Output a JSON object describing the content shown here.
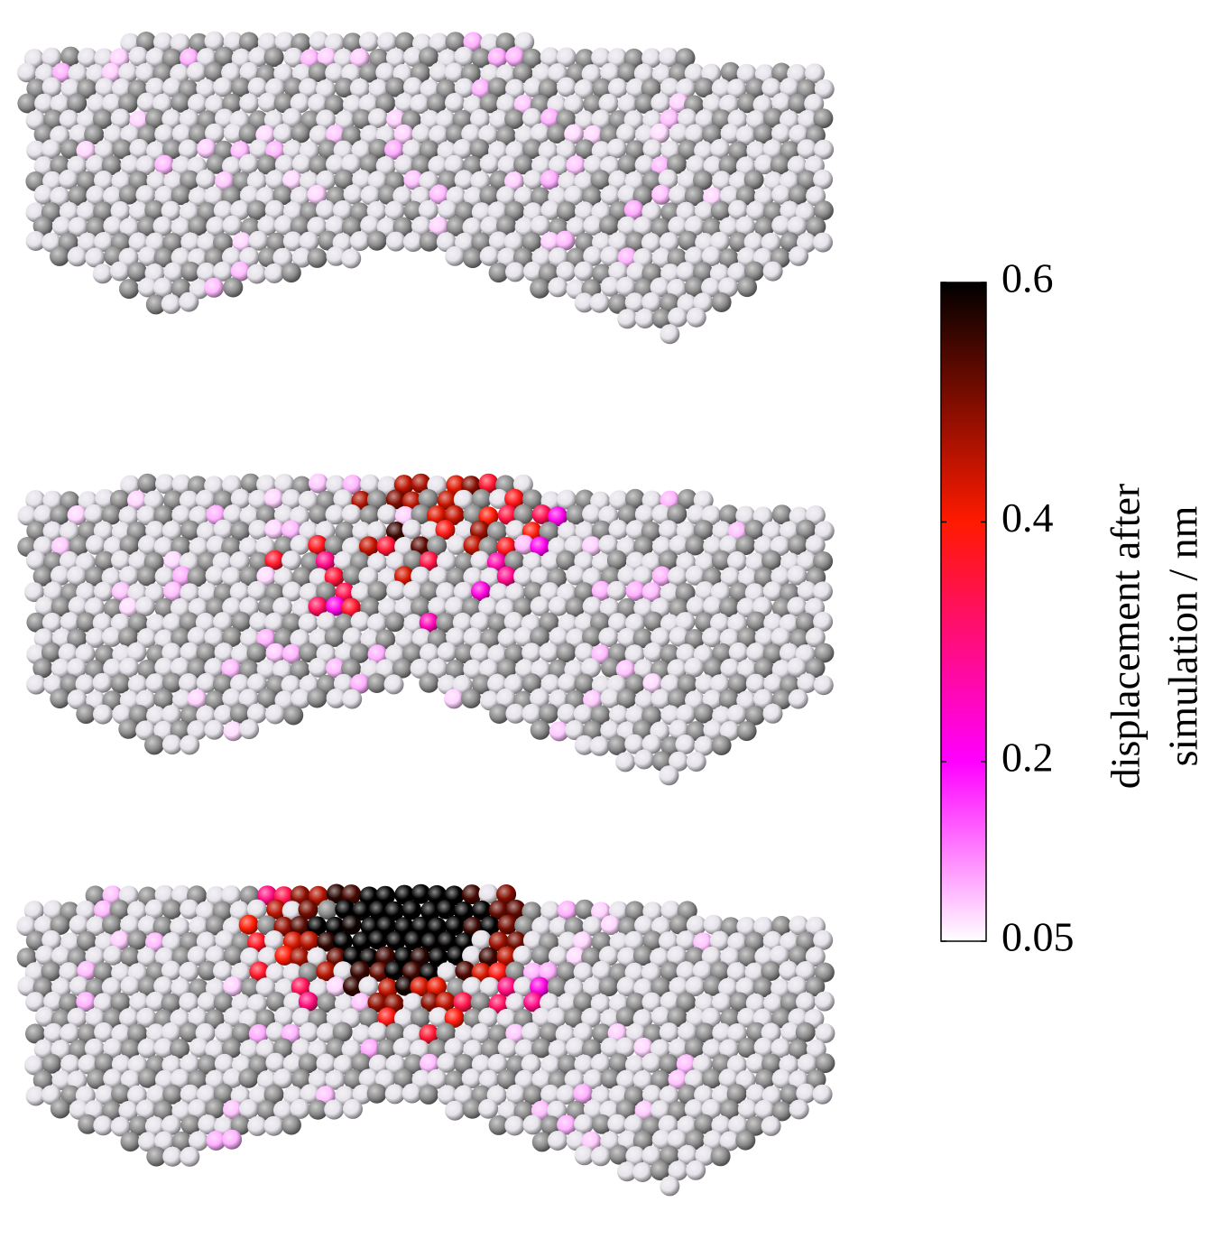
{
  "colorbar": {
    "label_lines": [
      "displacement after",
      "simulation / nm"
    ],
    "lim": [
      0.05,
      0.6
    ],
    "ticks": [
      0.05,
      0.2,
      0.4,
      0.6
    ],
    "stops": [
      {
        "value": 0.05,
        "color": "#ffffff"
      },
      {
        "value": 0.2,
        "color": "#ff00ff"
      },
      {
        "value": 0.4,
        "color": "#ff1a00"
      },
      {
        "value": 0.6,
        "color": "#000000"
      }
    ]
  }
}
